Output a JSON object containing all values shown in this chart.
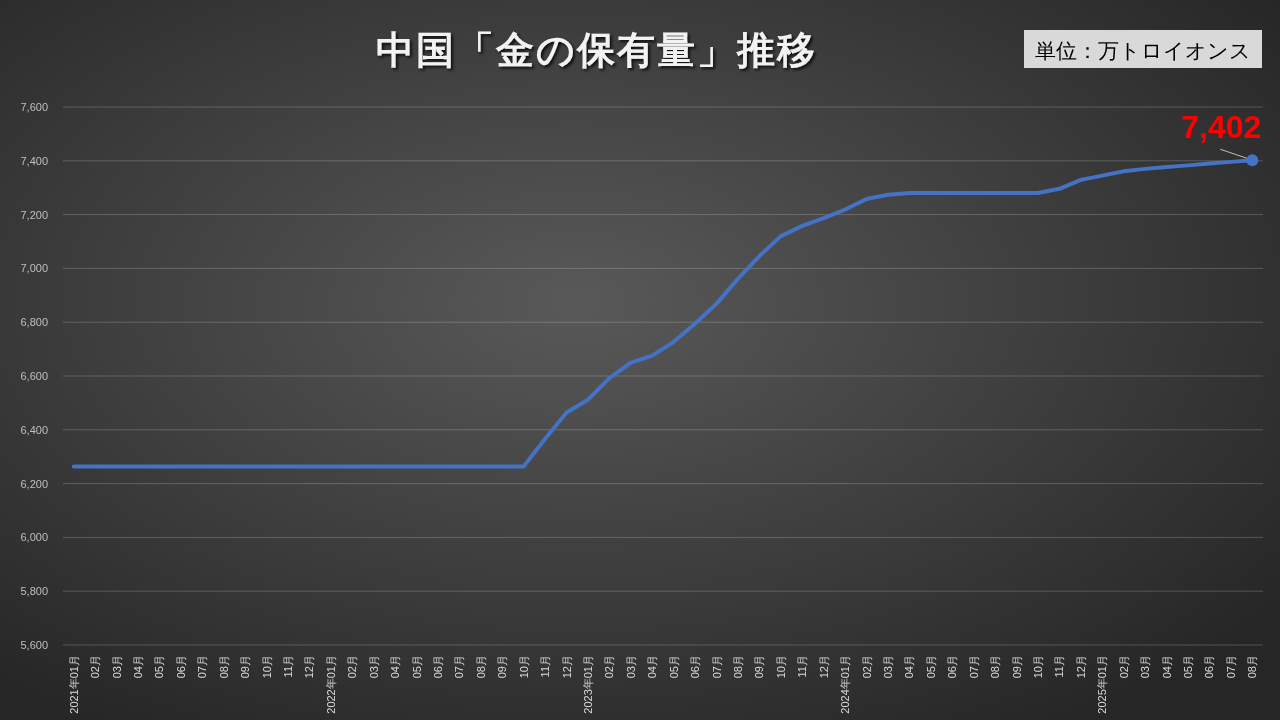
{
  "chart_data": {
    "type": "line",
    "title": "中国「金の保有量」推移",
    "ylabel": "単位：万トロイオンス",
    "categories": [
      "2021年01月",
      "02月",
      "03月",
      "04月",
      "05月",
      "06月",
      "07月",
      "08月",
      "09月",
      "10月",
      "11月",
      "12月",
      "2022年01月",
      "02月",
      "03月",
      "04月",
      "05月",
      "06月",
      "07月",
      "08月",
      "09月",
      "10月",
      "11月",
      "12月",
      "2023年01月",
      "02月",
      "03月",
      "04月",
      "05月",
      "06月",
      "07月",
      "08月",
      "09月",
      "10月",
      "11月",
      "12月",
      "2024年01月",
      "02月",
      "03月",
      "04月",
      "05月",
      "06月",
      "07月",
      "08月",
      "09月",
      "10月",
      "11月",
      "12月",
      "2025年01月",
      "02月",
      "03月",
      "04月",
      "05月",
      "06月",
      "07月",
      "08月"
    ],
    "series": [
      {
        "color": "#4472c4",
        "values": [
          6264,
          6264,
          6264,
          6264,
          6264,
          6264,
          6264,
          6264,
          6264,
          6264,
          6264,
          6264,
          6264,
          6264,
          6264,
          6264,
          6264,
          6264,
          6264,
          6264,
          6264,
          6264,
          6367,
          6464,
          6512,
          6592,
          6650,
          6676,
          6727,
          6795,
          6869,
          6962,
          7046,
          7120,
          7158,
          7187,
          7219,
          7258,
          7274,
          7280,
          7280,
          7280,
          7280,
          7280,
          7280,
          7280,
          7296,
          7329,
          7345,
          7361,
          7370,
          7377,
          7383,
          7390,
          7396,
          7402
        ]
      },
      {
        "type": "scatter",
        "color": "#4472c4",
        "marker": "circle",
        "values": [
          null,
          null,
          null,
          null,
          null,
          null,
          null,
          null,
          null,
          null,
          null,
          null,
          null,
          null,
          null,
          null,
          null,
          null,
          null,
          null,
          null,
          null,
          null,
          null,
          null,
          null,
          null,
          null,
          null,
          null,
          null,
          null,
          null,
          null,
          null,
          null,
          null,
          null,
          null,
          null,
          null,
          null,
          null,
          null,
          null,
          null,
          null,
          null,
          null,
          null,
          null,
          null,
          null,
          null,
          null,
          7402
        ],
        "value_labels": [
          null,
          null,
          null,
          null,
          null,
          null,
          null,
          null,
          null,
          null,
          null,
          null,
          null,
          null,
          null,
          null,
          null,
          null,
          null,
          null,
          null,
          null,
          null,
          null,
          null,
          null,
          null,
          null,
          null,
          null,
          null,
          null,
          null,
          null,
          null,
          null,
          null,
          null,
          null,
          null,
          null,
          null,
          null,
          null,
          null,
          null,
          null,
          null,
          null,
          null,
          null,
          null,
          null,
          null,
          null,
          "7,402"
        ]
      }
    ],
    "ylim": [
      5600,
      7600
    ],
    "yticks": [
      {
        "value": 5600,
        "label": "5,600"
      },
      {
        "value": 5800,
        "label": "5,800"
      },
      {
        "value": 6000,
        "label": "6,000"
      },
      {
        "value": 6200,
        "label": "6,200"
      },
      {
        "value": 6400,
        "label": "6,400"
      },
      {
        "value": 6600,
        "label": "6,600"
      },
      {
        "value": 6800,
        "label": "6,800"
      },
      {
        "value": 7000,
        "label": "7,000"
      },
      {
        "value": 7200,
        "label": "7,200"
      },
      {
        "value": 7400,
        "label": "7,400"
      },
      {
        "value": 7600,
        "label": "7,600"
      }
    ],
    "grid": "y"
  }
}
